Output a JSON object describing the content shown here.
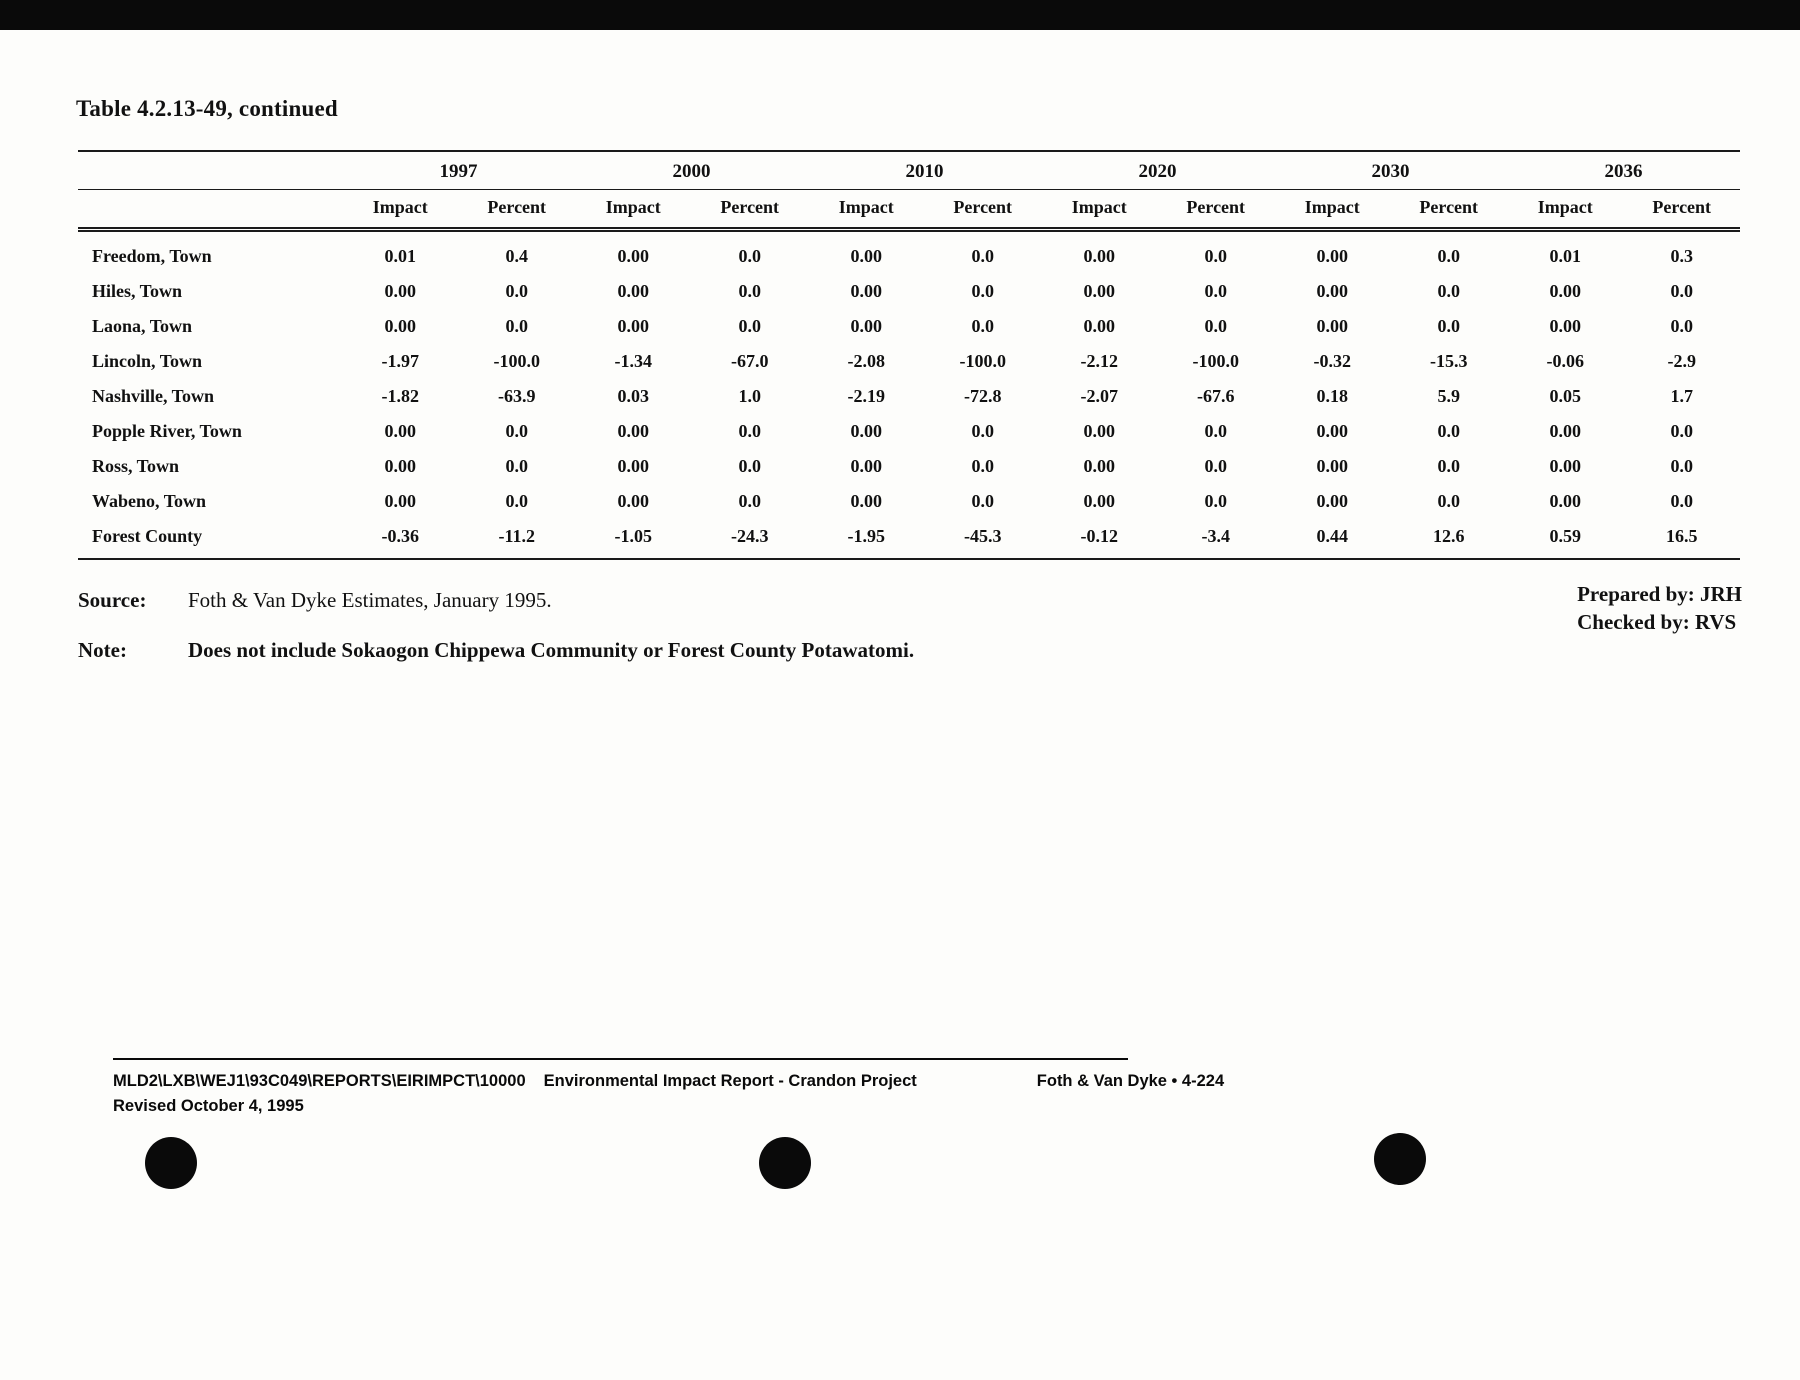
{
  "page": {
    "title": "Table 4.2.13-49, continued"
  },
  "table": {
    "year_groups": [
      "1997",
      "2000",
      "2010",
      "2020",
      "2030",
      "2036"
    ],
    "sub_headers": [
      "Impact",
      "Percent"
    ],
    "rows": [
      {
        "name": "Freedom, Town",
        "values": [
          "0.01",
          "0.4",
          "0.00",
          "0.0",
          "0.00",
          "0.0",
          "0.00",
          "0.0",
          "0.00",
          "0.0",
          "0.01",
          "0.3"
        ]
      },
      {
        "name": "Hiles, Town",
        "values": [
          "0.00",
          "0.0",
          "0.00",
          "0.0",
          "0.00",
          "0.0",
          "0.00",
          "0.0",
          "0.00",
          "0.0",
          "0.00",
          "0.0"
        ]
      },
      {
        "name": "Laona, Town",
        "values": [
          "0.00",
          "0.0",
          "0.00",
          "0.0",
          "0.00",
          "0.0",
          "0.00",
          "0.0",
          "0.00",
          "0.0",
          "0.00",
          "0.0"
        ]
      },
      {
        "name": "Lincoln, Town",
        "values": [
          "-1.97",
          "-100.0",
          "-1.34",
          "-67.0",
          "-2.08",
          "-100.0",
          "-2.12",
          "-100.0",
          "-0.32",
          "-15.3",
          "-0.06",
          "-2.9"
        ]
      },
      {
        "name": "Nashville, Town",
        "values": [
          "-1.82",
          "-63.9",
          "0.03",
          "1.0",
          "-2.19",
          "-72.8",
          "-2.07",
          "-67.6",
          "0.18",
          "5.9",
          "0.05",
          "1.7"
        ]
      },
      {
        "name": "Popple River, Town",
        "values": [
          "0.00",
          "0.0",
          "0.00",
          "0.0",
          "0.00",
          "0.0",
          "0.00",
          "0.0",
          "0.00",
          "0.0",
          "0.00",
          "0.0"
        ]
      },
      {
        "name": "Ross, Town",
        "values": [
          "0.00",
          "0.0",
          "0.00",
          "0.0",
          "0.00",
          "0.0",
          "0.00",
          "0.0",
          "0.00",
          "0.0",
          "0.00",
          "0.0"
        ]
      },
      {
        "name": "Wabeno, Town",
        "values": [
          "0.00",
          "0.0",
          "0.00",
          "0.0",
          "0.00",
          "0.0",
          "0.00",
          "0.0",
          "0.00",
          "0.0",
          "0.00",
          "0.0"
        ]
      },
      {
        "name": "Forest County",
        "values": [
          "-0.36",
          "-11.2",
          "-1.05",
          "-24.3",
          "-1.95",
          "-45.3",
          "-0.12",
          "-3.4",
          "0.44",
          "12.6",
          "0.59",
          "16.5"
        ]
      }
    ]
  },
  "source": {
    "label": "Source:",
    "text": "Foth & Van Dyke Estimates, January 1995."
  },
  "prepared": {
    "prepared_by": "Prepared by: JRH",
    "checked_by": "Checked by: RVS"
  },
  "note": {
    "label": "Note:",
    "text": "Does not include Sokaogon Chippewa Community or Forest County Potawatomi."
  },
  "footer": {
    "path": "MLD2\\LXB\\WEJ1\\93C049\\REPORTS\\EIRIMPCT\\10000",
    "report": "Environmental Impact Report - Crandon Project",
    "company_page": "Foth & Van Dyke • 4-224",
    "revised": "Revised October 4, 1995"
  }
}
